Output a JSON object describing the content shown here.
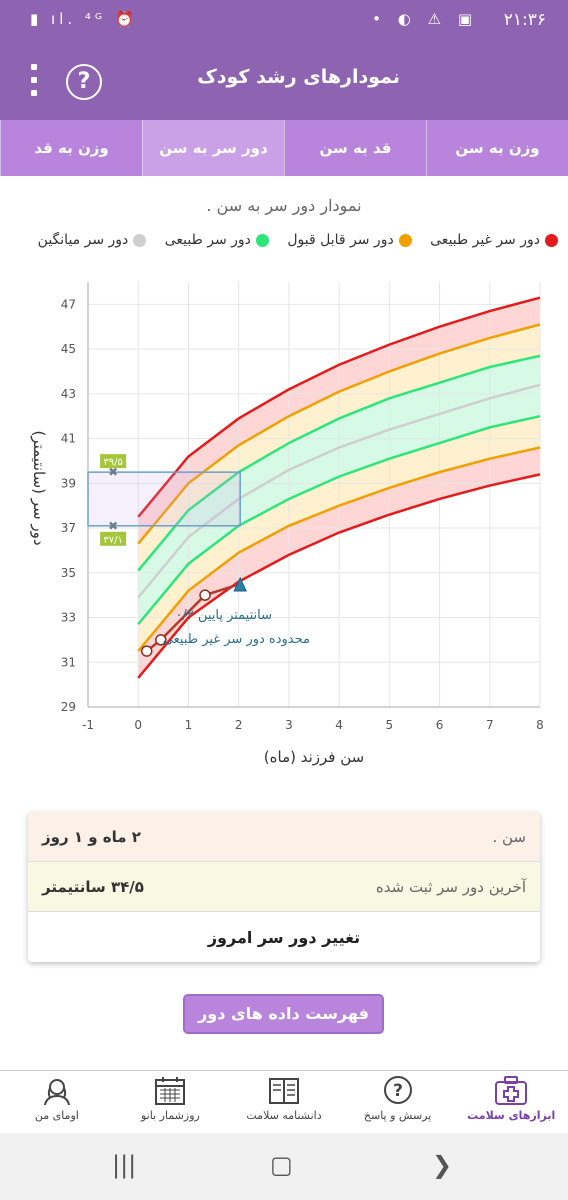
{
  "status": {
    "time": "۲۱:۳۶",
    "left_icons": "▮ ıl. ⁴ᴳ ⏰",
    "right_icons": "• ◐ ⚠ ▣"
  },
  "app": {
    "title": "نمودارهای رشد کودک",
    "help_symbol": "?"
  },
  "tabs": [
    {
      "label": "وزن به سن",
      "active": false
    },
    {
      "label": "قد به سن",
      "active": false
    },
    {
      "label": "دور سر به سن",
      "active": true
    },
    {
      "label": "وزن به قد",
      "active": false
    }
  ],
  "chart_title": "نمودار دور سر به سن .",
  "legend": [
    {
      "label": "دور سر غیر طبیعی",
      "color": "#e31b1b"
    },
    {
      "label": "دور سر قابل قبول",
      "color": "#f0a000"
    },
    {
      "label": "دور سر طبیعی",
      "color": "#2ee57a"
    },
    {
      "label": "دور سر میانگین",
      "color": "#cfcfcf"
    }
  ],
  "chart_data": {
    "type": "line",
    "xlabel": "سن فرزند (ماه)",
    "ylabel": "دور سر (سانتیمتر)",
    "xlim": [
      -1,
      8
    ],
    "ylim": [
      29,
      48
    ],
    "x_ticks": [
      -1,
      0,
      1,
      2,
      3,
      4,
      5,
      6,
      7,
      8
    ],
    "y_ticks": [
      29,
      31,
      33,
      35,
      37,
      39,
      41,
      43,
      45,
      47
    ],
    "x": [
      0,
      1,
      2,
      3,
      4,
      5,
      6,
      7,
      8
    ],
    "percentile_curves": [
      {
        "name": "lower-red",
        "color": "#e31b1b",
        "values": [
          30.3,
          33.0,
          34.6,
          35.8,
          36.8,
          37.6,
          38.3,
          38.9,
          39.4
        ]
      },
      {
        "name": "lower-orange",
        "color": "#f0a000",
        "values": [
          31.5,
          34.2,
          35.9,
          37.1,
          38.0,
          38.8,
          39.5,
          40.1,
          40.6
        ]
      },
      {
        "name": "lower-green",
        "color": "#2ee57a",
        "values": [
          32.7,
          35.4,
          37.1,
          38.3,
          39.3,
          40.1,
          40.8,
          41.5,
          42.0
        ]
      },
      {
        "name": "mean",
        "color": "#cfcfcf",
        "values": [
          33.9,
          36.6,
          38.3,
          39.6,
          40.6,
          41.4,
          42.1,
          42.8,
          43.4
        ]
      },
      {
        "name": "upper-green",
        "color": "#2ee57a",
        "values": [
          35.1,
          37.8,
          39.5,
          40.8,
          41.9,
          42.8,
          43.5,
          44.2,
          44.7
        ]
      },
      {
        "name": "upper-orange",
        "color": "#f0a000",
        "values": [
          36.3,
          39.0,
          40.7,
          42.0,
          43.1,
          44.0,
          44.8,
          45.5,
          46.1
        ]
      },
      {
        "name": "upper-red",
        "color": "#e31b1b",
        "values": [
          37.5,
          40.2,
          41.9,
          43.2,
          44.3,
          45.2,
          46.0,
          46.7,
          47.3
        ]
      }
    ],
    "measurements": {
      "color": "#b33b2b",
      "x": [
        0.17,
        0.45,
        1.33,
        2.03
      ],
      "y": [
        31.5,
        32.0,
        34.0,
        34.5
      ]
    },
    "range_box": {
      "x": [
        -1,
        2.03
      ],
      "y": [
        37.1,
        39.5
      ],
      "low_label": "۳۷/۱",
      "high_label": "۳۹/۵"
    },
    "annotation": {
      "line1": "۰/۲ سانتیمتر پایین",
      "line2": "محدوده دور سر غیر طبیعی"
    }
  },
  "summary": {
    "age_label": "سن .",
    "age_value": "۲ ماه و ۱ روز",
    "last_label": "آخرین دور سر ثبت شده",
    "last_value": "۳۴/۵ سانتیمتر",
    "change_label": "تغییر دور سر امروز"
  },
  "list_button": "فهرست داده های دور سر .",
  "bottom_nav": [
    {
      "label": "ابزارهای سلامت",
      "icon": "medical-kit-icon",
      "active": true
    },
    {
      "label": "پرسش و پاسخ",
      "icon": "question-icon",
      "active": false
    },
    {
      "label": "دانشنامه سلامت",
      "icon": "book-icon",
      "active": false
    },
    {
      "label": "روزشمار بانو",
      "icon": "calendar-icon",
      "active": false
    },
    {
      "label": "اومای من",
      "icon": "woman-avatar-icon",
      "active": false
    }
  ]
}
